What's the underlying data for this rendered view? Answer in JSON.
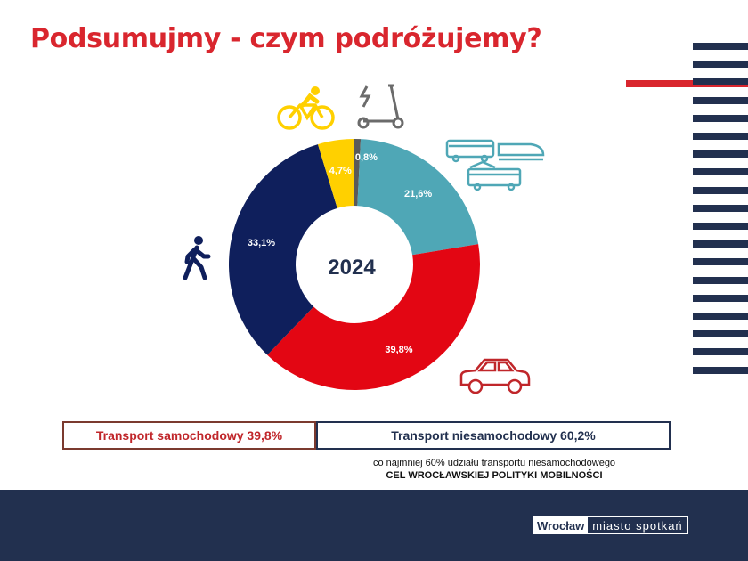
{
  "title": "Podsumujmy - czym podróżujemy?",
  "chart_data": {
    "type": "donut",
    "center_label": "2024",
    "slices": [
      {
        "label": "0,8%",
        "value": 0.8,
        "color": "#5a5a5a"
      },
      {
        "label": "21,6%",
        "value": 21.6,
        "color": "#4fa7b6"
      },
      {
        "label": "39,8%",
        "value": 39.8,
        "color": "#e30613"
      },
      {
        "label": "33,1%",
        "value": 33.1,
        "color": "#0f1f5c"
      },
      {
        "label": "4,7%",
        "value": 4.7,
        "color": "#ffd000"
      }
    ]
  },
  "summary": {
    "car_label": "Transport samochodowy 39,8%",
    "noncar_label": "Transport niesamochodowy 60,2%"
  },
  "note": {
    "line1": "co najmniej 60% udziału transportu niesamochodowego",
    "line2": "CEL WROCŁAWSKIEJ POLITYKI MOBILNOŚCI"
  },
  "footer": {
    "city": "Wrocław",
    "slogan": "miasto spotkań"
  },
  "colors": {
    "accent_red": "#d9262e",
    "navy": "#22304f",
    "icon_yellow": "#ffd000",
    "icon_grey": "#6b6b6b",
    "icon_teal": "#4fa7b6",
    "icon_navy": "#0f1f5c",
    "icon_car": "#c0262a"
  }
}
